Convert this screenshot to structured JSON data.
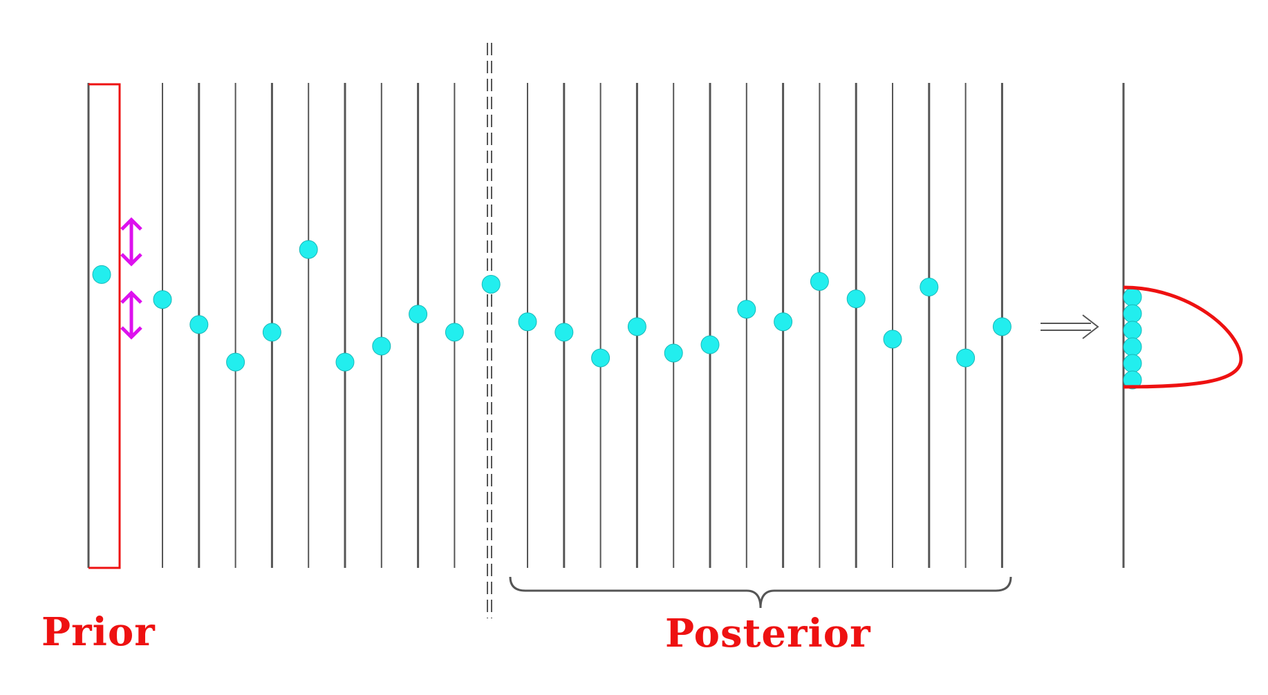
{
  "labels": {
    "prior": "Prior",
    "posterior": "Posterior"
  },
  "colors": {
    "accent_red": "#ee1111",
    "sample_cyan": "#22eeee",
    "arrow_magenta": "#dd11ee",
    "line_gray": "#555555"
  },
  "samples": [
    0.395,
    0.431,
    0.467,
    0.521,
    0.478,
    0.359,
    0.521,
    0.498,
    0.452,
    0.478,
    0.409,
    0.463,
    0.478,
    0.515,
    0.47,
    0.508,
    0.496,
    0.445,
    0.463,
    0.405,
    0.43,
    0.488,
    0.413,
    0.515,
    0.47
  ],
  "distribution": {
    "stacked_samples": 6
  }
}
